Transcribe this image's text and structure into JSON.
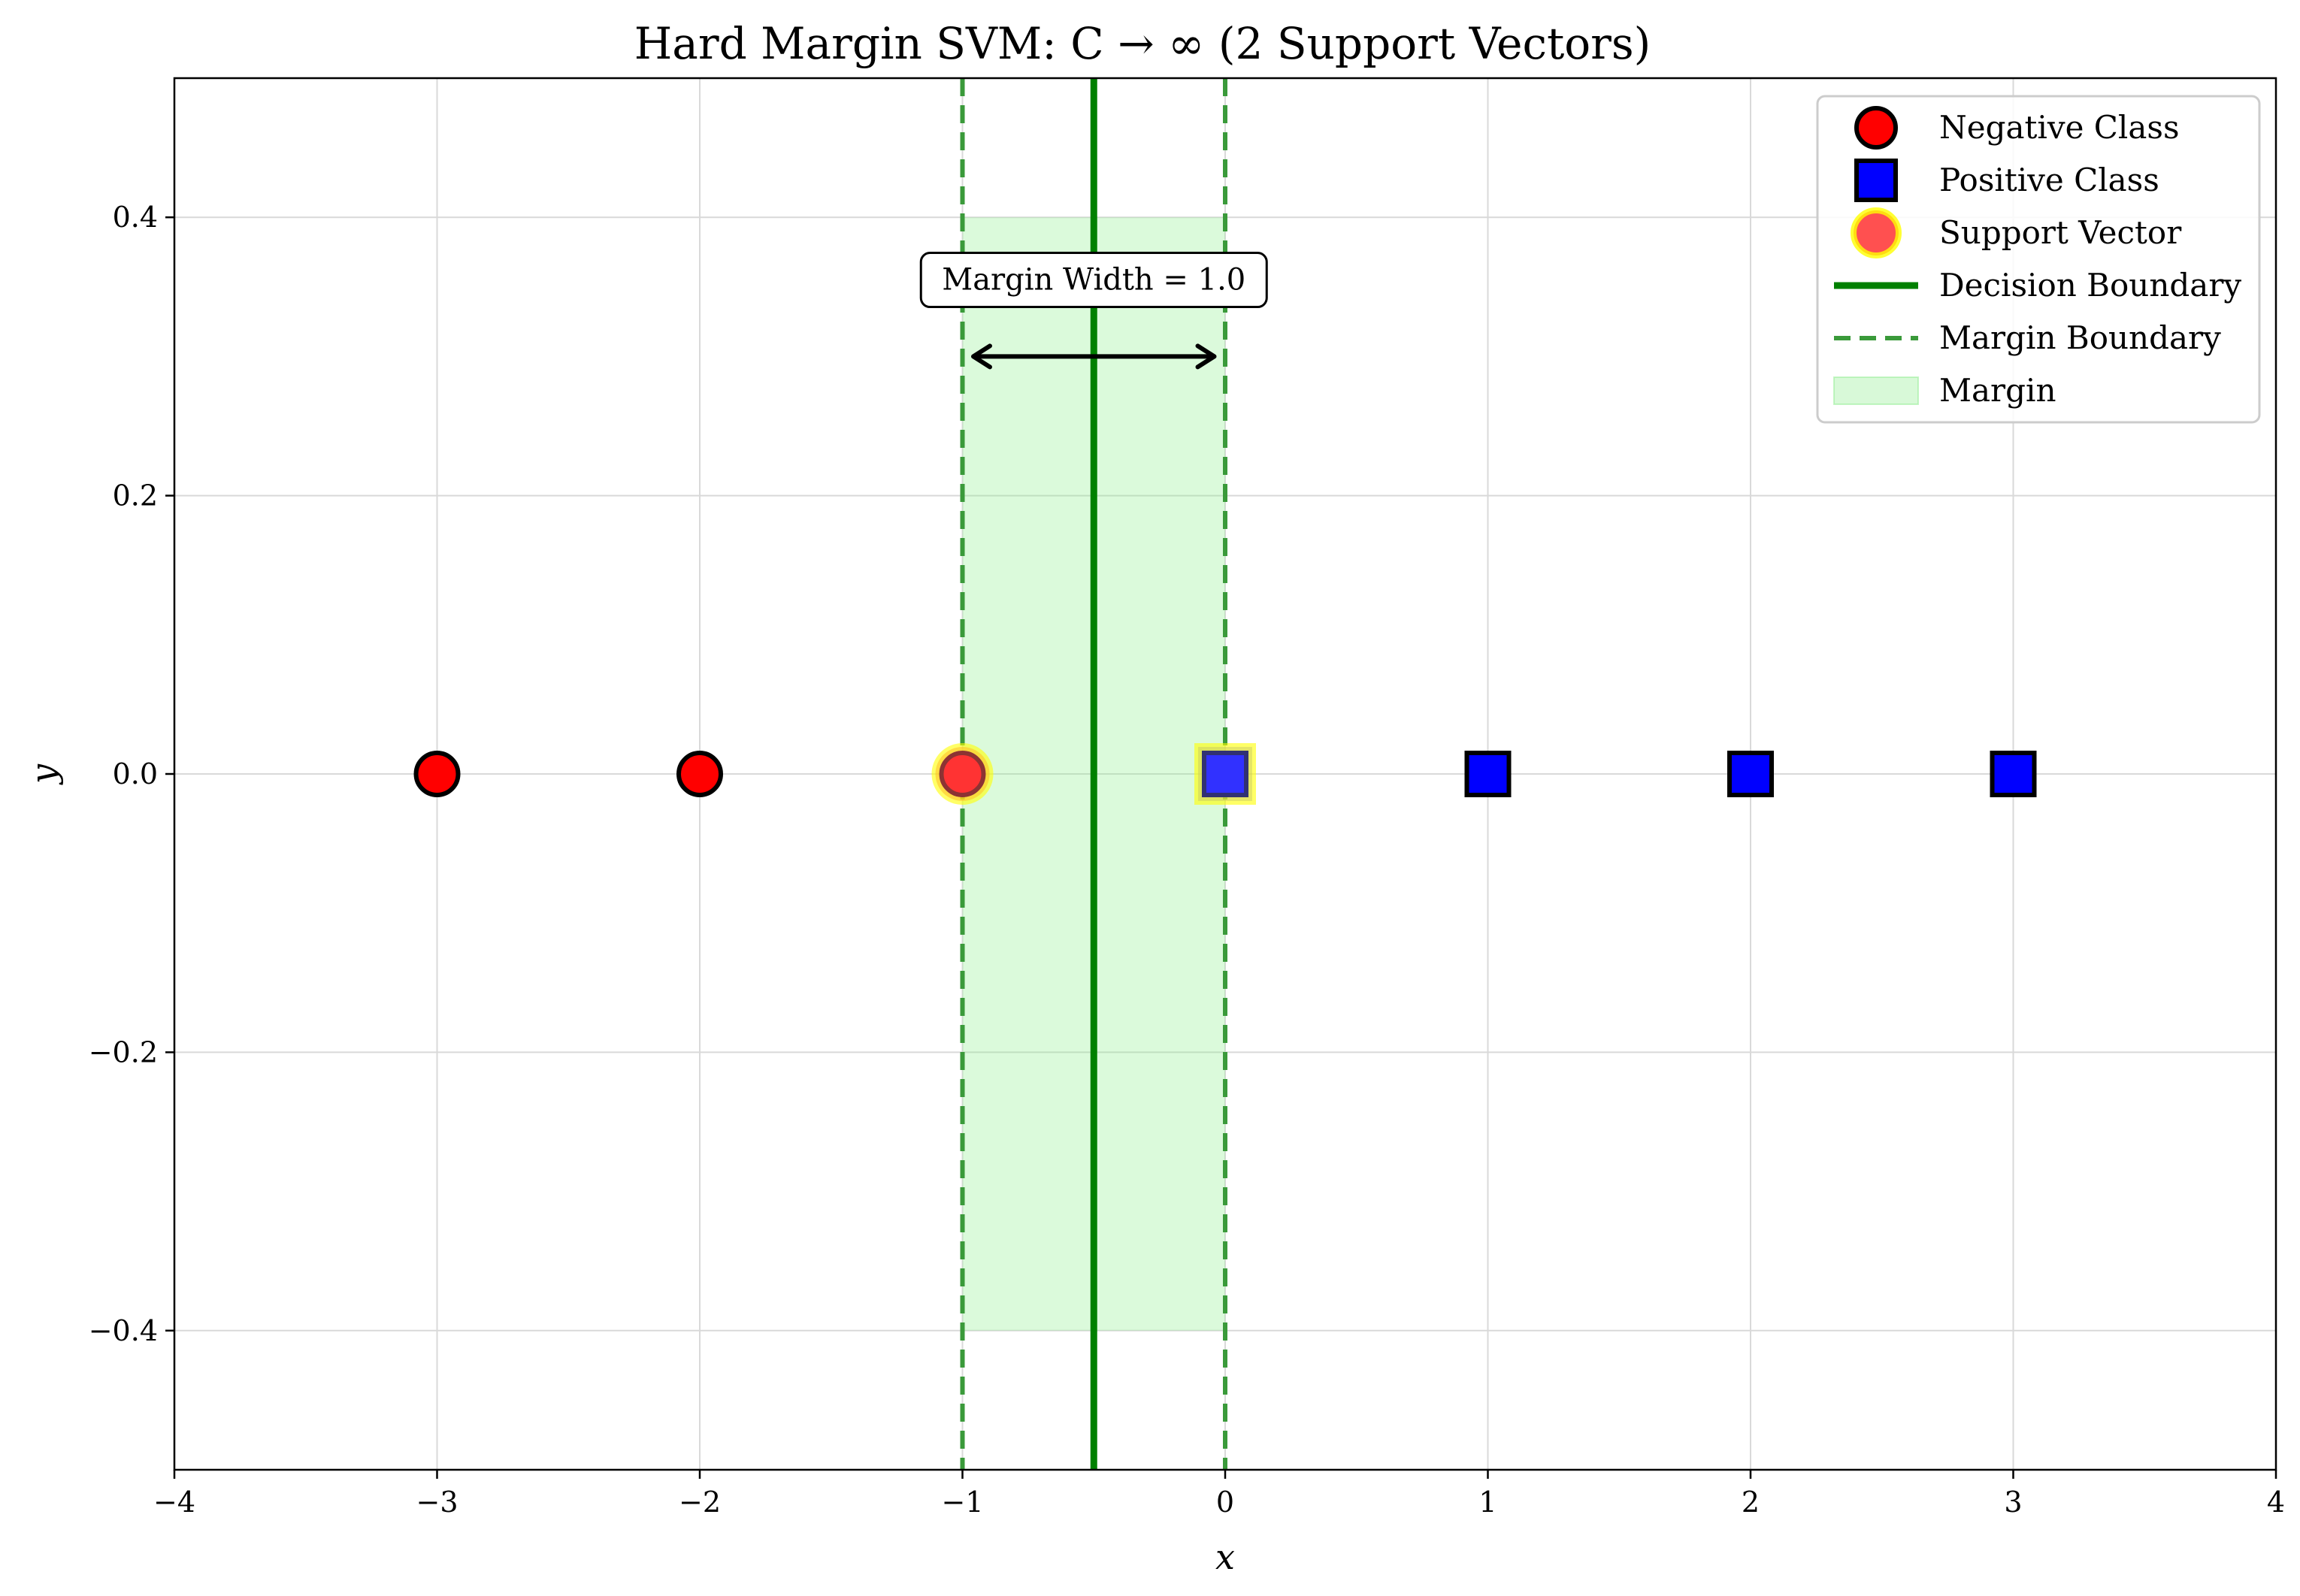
{
  "chart_data": {
    "type": "scatter",
    "title": "Hard Margin SVM: C → ∞ (2 Support Vectors)",
    "xlabel": "x",
    "ylabel": "y",
    "xlim": [
      -4,
      4
    ],
    "ylim": [
      -0.5,
      0.5
    ],
    "xticks": [
      -4,
      -3,
      -2,
      -1,
      0,
      1,
      2,
      3,
      4
    ],
    "yticks": [
      -0.4,
      -0.2,
      0.0,
      0.2,
      0.4
    ],
    "xtick_labels": [
      "−4",
      "−3",
      "−2",
      "−1",
      "0",
      "1",
      "2",
      "3",
      "4"
    ],
    "ytick_labels": [
      "−0.4",
      "−0.2",
      "0.0",
      "0.2",
      "0.4"
    ],
    "grid": true,
    "legend_position": "top-right",
    "series": [
      {
        "name": "Negative Class",
        "marker": "circle",
        "color": "#ff0000",
        "x": [
          -3,
          -2,
          -1
        ],
        "y": [
          0,
          0,
          0
        ]
      },
      {
        "name": "Positive Class",
        "marker": "square",
        "color": "#0000ff",
        "x": [
          0,
          1,
          2,
          3
        ],
        "y": [
          0,
          0,
          0,
          0
        ]
      },
      {
        "name": "Support Vector",
        "marker": "highlight",
        "color": "#ffff00",
        "x": [
          -1,
          0
        ],
        "y": [
          0,
          0
        ]
      }
    ],
    "decision_boundary": {
      "name": "Decision Boundary",
      "x": -0.5,
      "color": "#008000"
    },
    "margin_boundaries": {
      "name": "Margin Boundary",
      "x": [
        -1,
        0
      ],
      "color": "#3a9a3a"
    },
    "margin_region": {
      "name": "Margin",
      "x": [
        -1,
        0
      ],
      "y": [
        -0.4,
        0.4
      ],
      "color": "#90ee90"
    },
    "annotation": {
      "text": "Margin Width = 1.0",
      "x": -0.5,
      "y": 0.355,
      "arrow_x": [
        -0.97,
        -0.03
      ],
      "arrow_y": 0.3
    }
  }
}
